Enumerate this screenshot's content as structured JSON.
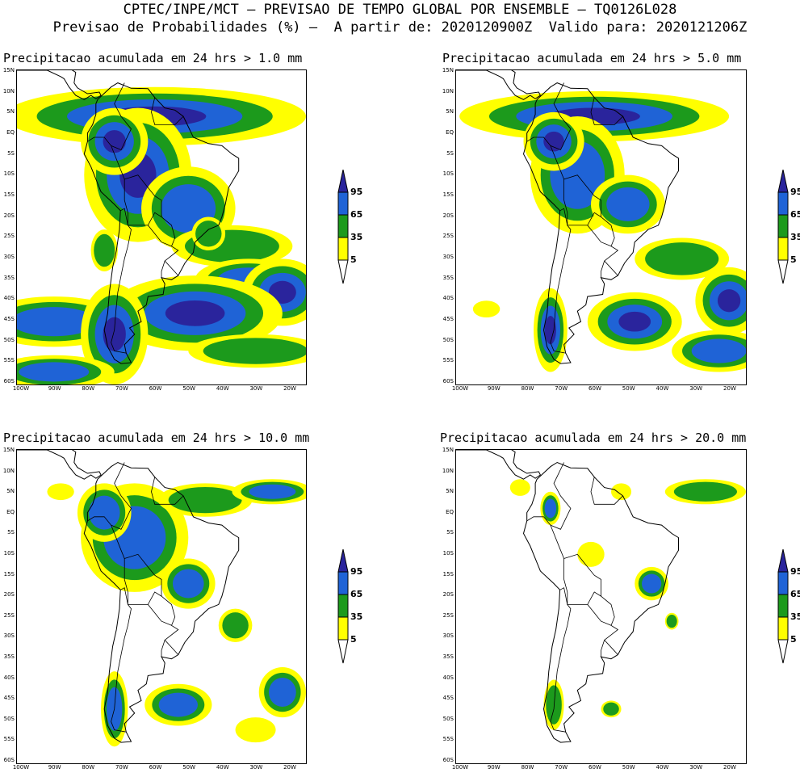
{
  "header": {
    "line1": "CPTEC/INPE/MCT – PREVISAO DE TEMPO GLOBAL POR ENSEMBLE – TQ0126L028",
    "line2": "Previsao de Probabilidades (%) –  A partir de: 2020120900Z  Valido para: 2020121206Z"
  },
  "panels": [
    {
      "title": "Precipitacao acumulada em 24 hrs > 1.0 mm"
    },
    {
      "title": "Precipitacao acumulada em 24 hrs > 5.0 mm"
    },
    {
      "title": "Precipitacao acumulada em 24 hrs > 10.0 mm"
    },
    {
      "title": "Precipitacao acumulada em 24 hrs > 20.0 mm"
    }
  ],
  "lat_labels": [
    "15N",
    "10N",
    "5N",
    "EQ",
    "5S",
    "10S",
    "15S",
    "20S",
    "25S",
    "30S",
    "35S",
    "40S",
    "45S",
    "50S",
    "55S",
    "60S"
  ],
  "lon_labels": [
    "100W",
    "90W",
    "80W",
    "70W",
    "60W",
    "50W",
    "40W",
    "30W",
    "20W"
  ],
  "colorbar": {
    "levels": [
      "95",
      "65",
      "35",
      "5"
    ],
    "colors": {
      "yellow": "#ffff00",
      "green": "#1c9a1c",
      "blue": "#1f63d6",
      "navy": "#2a249c"
    }
  }
}
